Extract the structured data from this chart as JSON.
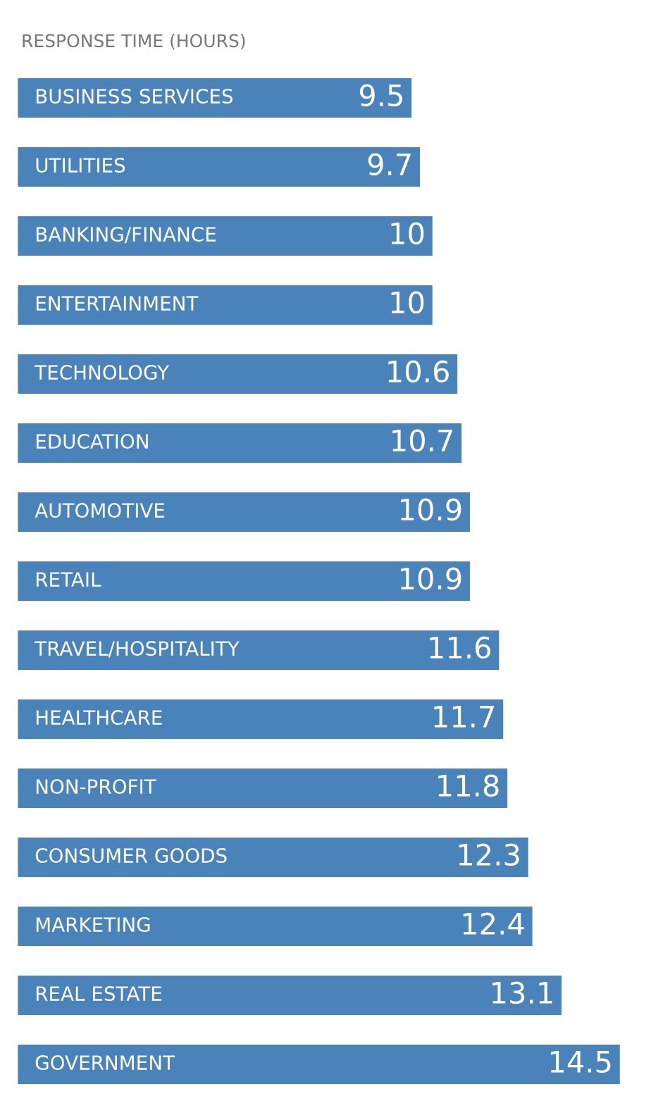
{
  "chart_data": {
    "type": "bar",
    "orientation": "horizontal",
    "title": "RESPONSE TIME (HOURS)",
    "categories": [
      "BUSINESS SERVICES",
      "UTILITIES",
      "BANKING/FINANCE",
      "ENTERTAINMENT",
      "TECHNOLOGY",
      "EDUCATION",
      "AUTOMOTIVE",
      "RETAIL",
      "TRAVEL/HOSPITALITY",
      "HEALTHCARE",
      "NON-PROFIT",
      "CONSUMER GOODS",
      "MARKETING",
      "REAL ESTATE",
      "GOVERNMENT"
    ],
    "values": [
      9.5,
      9.7,
      10,
      10,
      10.6,
      10.7,
      10.9,
      10.9,
      11.6,
      11.7,
      11.8,
      12.3,
      12.4,
      13.1,
      14.5
    ],
    "color": "#4a83b9",
    "data_labels": true
  }
}
